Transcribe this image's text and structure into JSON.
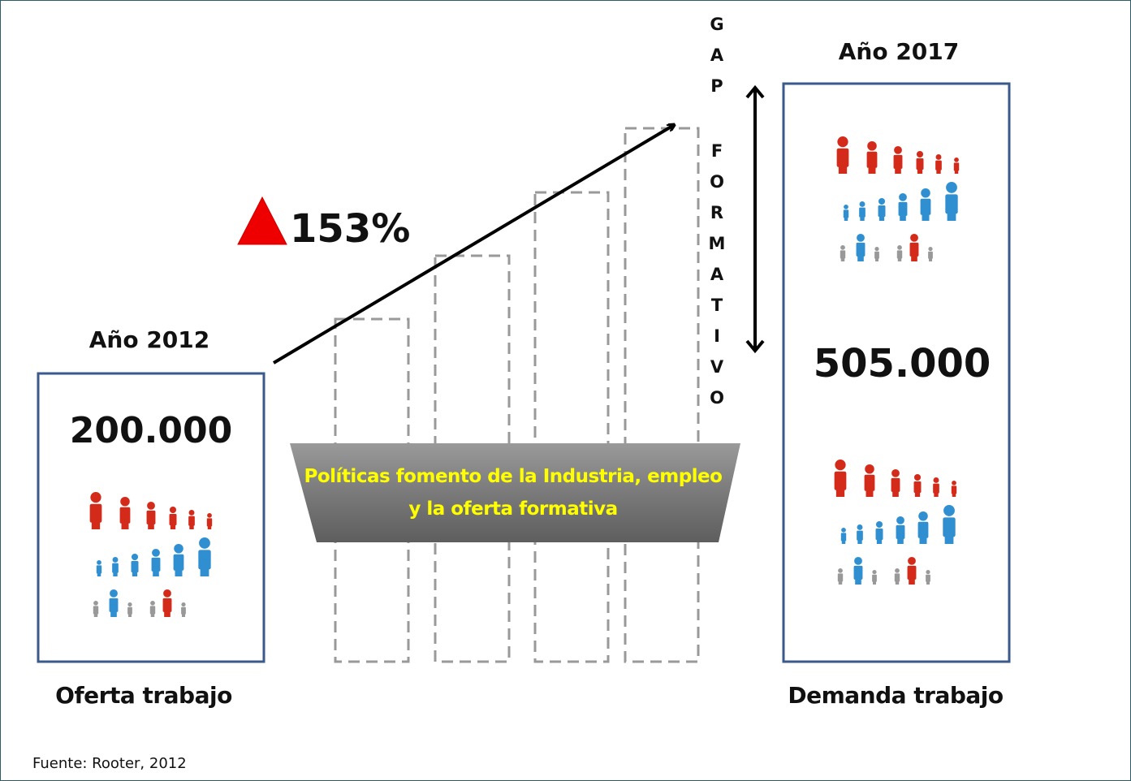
{
  "left": {
    "year": "Año 2012",
    "value": "200.000",
    "caption": "Oferta trabajo"
  },
  "right": {
    "year": "Año 2017",
    "value": "505.000",
    "caption": "Demanda trabajo"
  },
  "growth": "153%",
  "gap": [
    "GAP",
    "FORMATIVO"
  ],
  "banner": [
    "Políticas fomento de la Industria, empleo",
    "y la oferta formativa"
  ],
  "source": "Fuente: Rooter, 2012"
}
